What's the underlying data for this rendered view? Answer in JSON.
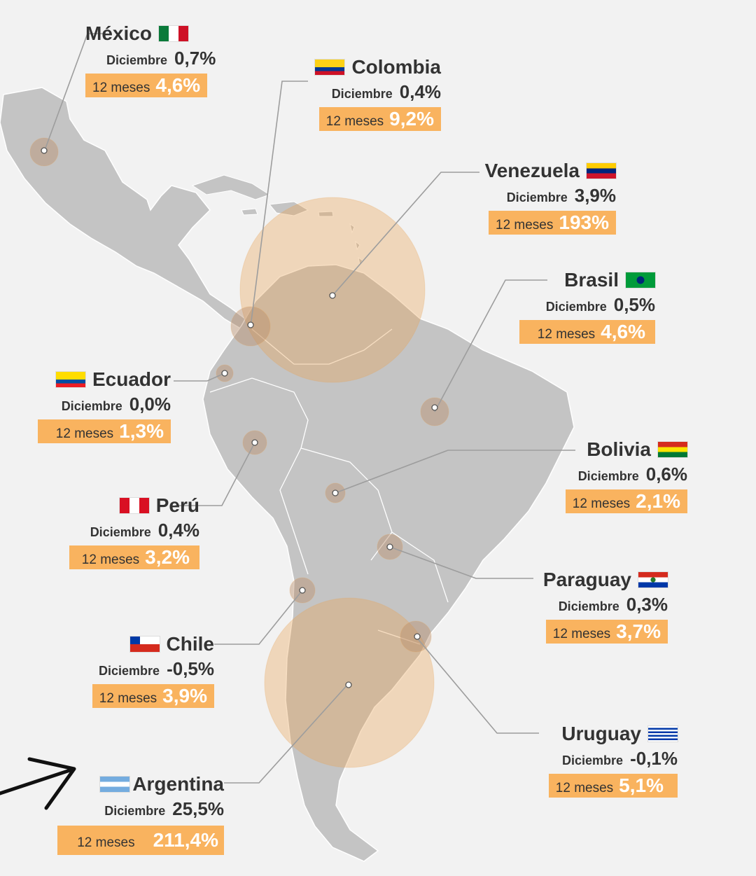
{
  "labels": {
    "month": "Diciembre",
    "year": "12 meses"
  },
  "colors": {
    "accent": "#f9b35f",
    "land": "#c4c4c4",
    "bubble": "#e8a456"
  },
  "countries": [
    {
      "name": "México",
      "dec": "0,7%",
      "year": "4,6%",
      "flag": "flag-mexico"
    },
    {
      "name": "Colombia",
      "dec": "0,4%",
      "year": "9,2%",
      "flag": "flag-colombia"
    },
    {
      "name": "Venezuela",
      "dec": "3,9%",
      "year": "193%",
      "flag": "flag-venezuela"
    },
    {
      "name": "Brasil",
      "dec": "0,5%",
      "year": "4,6%",
      "flag": "flag-brazil"
    },
    {
      "name": "Ecuador",
      "dec": "0,0%",
      "year": "1,3%",
      "flag": "flag-ecuador"
    },
    {
      "name": "Bolivia",
      "dec": "0,6%",
      "year": "2,1%",
      "flag": "flag-bolivia"
    },
    {
      "name": "Perú",
      "dec": "0,4%",
      "year": "3,2%",
      "flag": "flag-peru"
    },
    {
      "name": "Paraguay",
      "dec": "0,3%",
      "year": "3,7%",
      "flag": "flag-paraguay"
    },
    {
      "name": "Chile",
      "dec": "-0,5%",
      "year": "3,9%",
      "flag": "flag-chile"
    },
    {
      "name": "Uruguay",
      "dec": "-0,1%",
      "year": "5,1%",
      "flag": "flag-uruguay"
    },
    {
      "name": "Argentina",
      "dec": "25,5%",
      "year": "211,4%",
      "flag": "flag-argentina"
    }
  ]
}
